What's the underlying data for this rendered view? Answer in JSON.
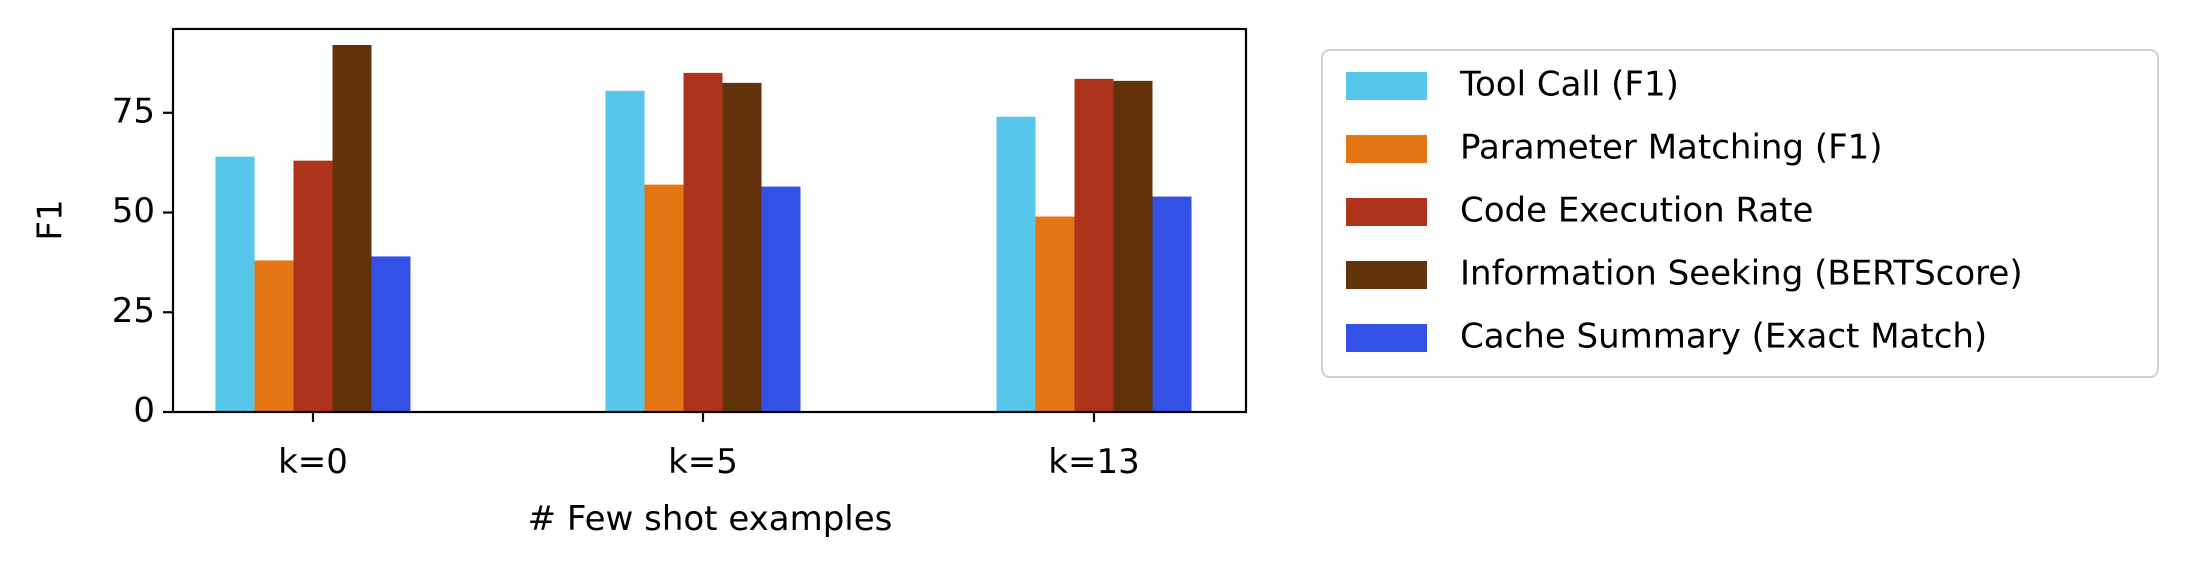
{
  "chart_data": {
    "type": "bar",
    "title": "",
    "xlabel": "# Few shot examples",
    "ylabel": "F1",
    "categories": [
      "k=0",
      "k=5",
      "k=13"
    ],
    "ylim": [
      0,
      96
    ],
    "yticks": [
      0,
      25,
      50,
      75
    ],
    "grid": false,
    "legend_position": "right, outside plot",
    "series": [
      {
        "name": "Tool Call (F1)",
        "color": "#56c6eb",
        "values": [
          64,
          80.5,
          74
        ]
      },
      {
        "name": "Parameter Matching (F1)",
        "color": "#e47614",
        "values": [
          38,
          57,
          49
        ]
      },
      {
        "name": "Code Execution Rate",
        "color": "#ad341a",
        "values": [
          63,
          85,
          83.5
        ]
      },
      {
        "name": "Information Seeking (BERTScore)",
        "color": "#62320b",
        "values": [
          92,
          82.5,
          83
        ]
      },
      {
        "name": "Cache Summary (Exact Match)",
        "color": "#3451e5",
        "values": [
          39,
          56.5,
          54
        ]
      }
    ]
  }
}
